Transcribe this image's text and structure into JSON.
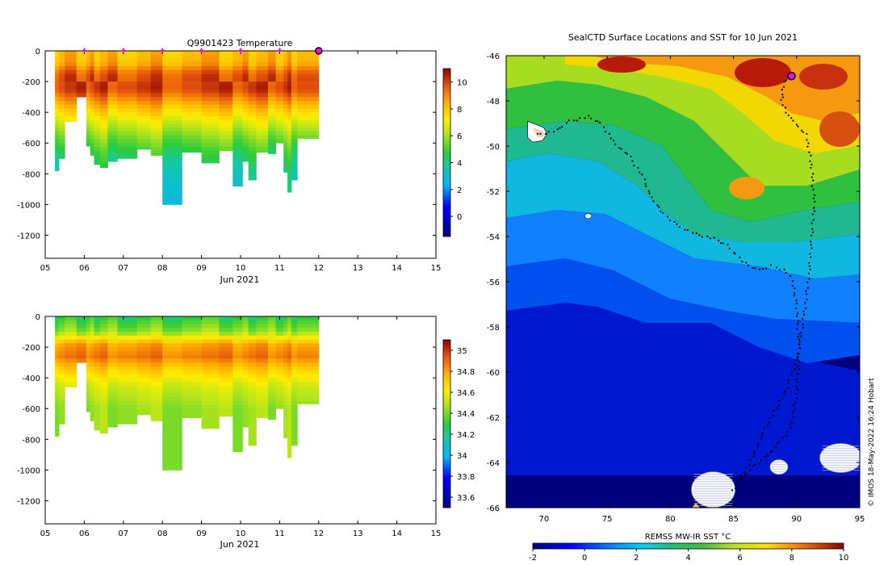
{
  "chart_data": [
    {
      "type": "heatmap",
      "title": "Q9901423  Temperature",
      "xlabel": "Jun 2021",
      "ylabel": "",
      "xlim": [
        5,
        15
      ],
      "ylim": [
        -1350,
        0
      ],
      "xticks": [
        "05",
        "06",
        "07",
        "08",
        "09",
        "10",
        "11",
        "12",
        "13",
        "14",
        "15"
      ],
      "yticks": [
        0,
        -200,
        -400,
        -600,
        -800,
        -1000,
        -1200
      ],
      "profile_markers_day": [
        6,
        7,
        8,
        9,
        10,
        11
      ],
      "current_position_day": 12,
      "colorbar": {
        "min": -1.5,
        "max": 11,
        "ticks": [
          0,
          2,
          4,
          6,
          8,
          10
        ]
      },
      "profiles": [
        {
          "start": 5.25,
          "end": 5.35,
          "depth": 780
        },
        {
          "start": 5.35,
          "end": 5.5,
          "depth": 700
        },
        {
          "start": 5.5,
          "end": 5.8,
          "depth": 460
        },
        {
          "start": 5.8,
          "end": 6.05,
          "depth": 300
        },
        {
          "start": 6.05,
          "end": 6.15,
          "depth": 620
        },
        {
          "start": 6.15,
          "end": 6.25,
          "depth": 680
        },
        {
          "start": 6.25,
          "end": 6.4,
          "depth": 740
        },
        {
          "start": 6.4,
          "end": 6.6,
          "depth": 760
        },
        {
          "start": 6.6,
          "end": 6.85,
          "depth": 720
        },
        {
          "start": 6.85,
          "end": 7.35,
          "depth": 700
        },
        {
          "start": 7.35,
          "end": 7.7,
          "depth": 640
        },
        {
          "start": 7.7,
          "end": 8.0,
          "depth": 680
        },
        {
          "start": 8.0,
          "end": 8.5,
          "depth": 1000
        },
        {
          "start": 8.5,
          "end": 9.0,
          "depth": 660
        },
        {
          "start": 9.0,
          "end": 9.45,
          "depth": 730
        },
        {
          "start": 9.45,
          "end": 9.8,
          "depth": 650
        },
        {
          "start": 9.8,
          "end": 10.05,
          "depth": 880
        },
        {
          "start": 10.05,
          "end": 10.2,
          "depth": 720
        },
        {
          "start": 10.2,
          "end": 10.4,
          "depth": 840
        },
        {
          "start": 10.4,
          "end": 10.7,
          "depth": 660
        },
        {
          "start": 10.7,
          "end": 10.9,
          "depth": 670
        },
        {
          "start": 10.9,
          "end": 11.1,
          "depth": 600
        },
        {
          "start": 11.1,
          "end": 11.2,
          "depth": 790
        },
        {
          "start": 11.2,
          "end": 11.3,
          "depth": 920
        },
        {
          "start": 11.3,
          "end": 11.45,
          "depth": 840
        },
        {
          "start": 11.45,
          "end": 12.0,
          "depth": 570
        }
      ],
      "temperature_profile": [
        {
          "depth": 0,
          "value": 8.2
        },
        {
          "depth": 80,
          "value": 8.5
        },
        {
          "depth": 150,
          "value": 9.8
        },
        {
          "depth": 250,
          "value": 10.1
        },
        {
          "depth": 350,
          "value": 8.5
        },
        {
          "depth": 450,
          "value": 7.0
        },
        {
          "depth": 550,
          "value": 5.8
        },
        {
          "depth": 650,
          "value": 4.8
        },
        {
          "depth": 800,
          "value": 3.8
        },
        {
          "depth": 1000,
          "value": 3.3
        }
      ]
    },
    {
      "type": "heatmap",
      "title": "",
      "xlabel": "Jun 2021",
      "ylabel": "",
      "xlim": [
        5,
        15
      ],
      "ylim": [
        -1350,
        0
      ],
      "xticks": [
        "05",
        "06",
        "07",
        "08",
        "09",
        "10",
        "11",
        "12",
        "13",
        "14",
        "15"
      ],
      "yticks": [
        0,
        -200,
        -400,
        -600,
        -800,
        -1000,
        -1200
      ],
      "colorbar": {
        "min": 33.5,
        "max": 35.1,
        "ticks": [
          "33.6",
          "33.8",
          "34",
          "34.2",
          "34.4",
          "34.6",
          "34.8",
          "35"
        ]
      },
      "salinity_profile": [
        {
          "depth": 0,
          "value": 34.28
        },
        {
          "depth": 100,
          "value": 34.45
        },
        {
          "depth": 180,
          "value": 34.8
        },
        {
          "depth": 260,
          "value": 34.88
        },
        {
          "depth": 350,
          "value": 34.7
        },
        {
          "depth": 450,
          "value": 34.55
        },
        {
          "depth": 600,
          "value": 34.45
        },
        {
          "depth": 1000,
          "value": 34.45
        }
      ]
    },
    {
      "type": "heatmap",
      "title": "SealCTD Surface Locations and SST for 10 Jun 2021",
      "xlabel": "",
      "ylabel": "",
      "xlim": [
        67,
        95
      ],
      "ylim": [
        -66,
        -46
      ],
      "xticks": [
        70,
        75,
        80,
        85,
        90,
        95
      ],
      "yticks": [
        -46,
        -48,
        -50,
        -52,
        -54,
        -56,
        -58,
        -60,
        -62,
        -64,
        -66
      ],
      "colorbar": {
        "label": "REMSS MW-IR SST °C",
        "min": -2,
        "max": 10,
        "ticks": [
          -2,
          0,
          2,
          4,
          6,
          8,
          10
        ]
      },
      "track": [
        [
          69.5,
          -49.5
        ],
        [
          71,
          -49.3
        ],
        [
          72,
          -48.9
        ],
        [
          73.5,
          -48.7
        ],
        [
          74.5,
          -49.0
        ],
        [
          75.5,
          -49.8
        ],
        [
          76.8,
          -50.5
        ],
        [
          77.8,
          -51.3
        ],
        [
          78.5,
          -52.3
        ],
        [
          79.5,
          -53.0
        ],
        [
          80.5,
          -53.5
        ],
        [
          82,
          -53.9
        ],
        [
          83.5,
          -54.1
        ],
        [
          84.5,
          -54.4
        ],
        [
          85.2,
          -54.8
        ],
        [
          86,
          -55.2
        ],
        [
          87,
          -55.5
        ],
        [
          88,
          -55.3
        ],
        [
          89,
          -55.5
        ],
        [
          89.6,
          -55.8
        ],
        [
          90,
          -57
        ],
        [
          90.2,
          -59
        ],
        [
          90.0,
          -61
        ],
        [
          89.5,
          -62.5
        ],
        [
          88.5,
          -63.2
        ],
        [
          87.5,
          -63.8
        ],
        [
          86.5,
          -64.2
        ],
        [
          85.5,
          -64.8
        ],
        [
          84.8,
          -65.4
        ]
      ],
      "track2": [
        [
          85.5,
          -64.7
        ],
        [
          86.5,
          -63.8
        ],
        [
          87.5,
          -62.5
        ],
        [
          89.0,
          -61
        ],
        [
          90.0,
          -59.5
        ],
        [
          90.6,
          -57.5
        ],
        [
          91.0,
          -55.5
        ],
        [
          91.2,
          -54
        ],
        [
          91.4,
          -52.5
        ],
        [
          91.2,
          -51
        ],
        [
          90.8,
          -49.5
        ],
        [
          89.5,
          -48.8
        ],
        [
          88.8,
          -48.0
        ],
        [
          89.0,
          -47.2
        ],
        [
          89.6,
          -46.9
        ]
      ],
      "current_position": [
        89.6,
        -46.9
      ],
      "islands": [
        {
          "name": "kerguelen",
          "lon": 69.6,
          "lat": -49.4
        },
        {
          "name": "heard",
          "lon": 73.5,
          "lat": -53.1
        }
      ],
      "ice": [
        {
          "lon": 83.4,
          "lat": -65.2
        },
        {
          "lon": 88.6,
          "lat": -64.2
        },
        {
          "lon": 93.5,
          "lat": -63.8
        }
      ]
    }
  ],
  "credit": "© IMOS 18-May-2022 16:24 Hobart"
}
